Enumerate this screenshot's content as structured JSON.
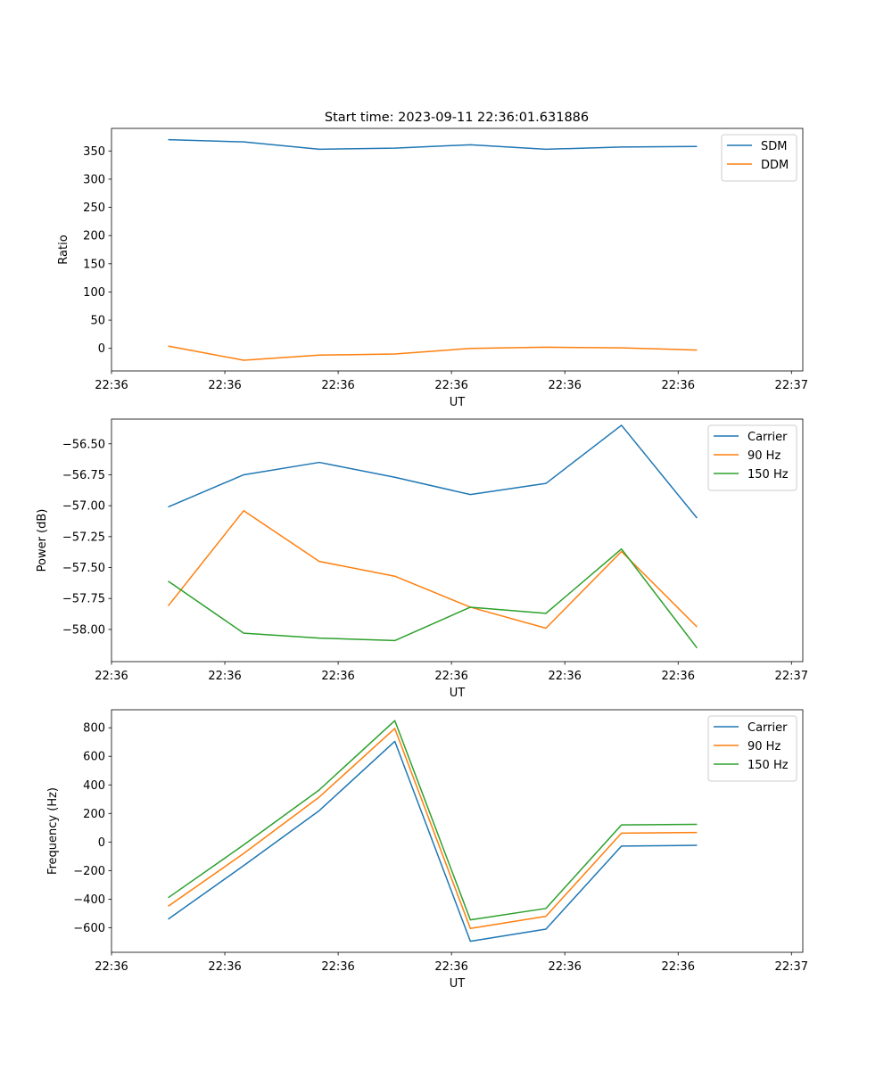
{
  "figure_title": "Start time: 2023-09-11 22:36:01.631886",
  "colors": {
    "c0": "#1f77b4",
    "c1": "#ff7f0e",
    "c2": "#2ca02c"
  },
  "chart_data": [
    {
      "type": "line",
      "title": "Start time: 2023-09-11 22:36:01.631886",
      "xlabel": "UT",
      "ylabel": "Ratio",
      "x": [
        0,
        1,
        2,
        3,
        4,
        5,
        6,
        7
      ],
      "xlim": [
        -0.75,
        8.4
      ],
      "xticks": [
        -0.75,
        0.75,
        2.25,
        3.75,
        5.25,
        6.75,
        8.25
      ],
      "xtick_labels": [
        "22:36",
        "22:36",
        "22:36",
        "22:36",
        "22:36",
        "22:36",
        "22:37"
      ],
      "ylim": [
        -40,
        390
      ],
      "yticks": [
        0,
        50,
        100,
        150,
        200,
        250,
        300,
        350
      ],
      "ytick_labels": [
        "0",
        "50",
        "100",
        "150",
        "200",
        "250",
        "300",
        "350"
      ],
      "legend_position": "top-right",
      "series": [
        {
          "name": "SDM",
          "color": "#1f77b4",
          "values": [
            370,
            366,
            353,
            355,
            361,
            353,
            357,
            358
          ]
        },
        {
          "name": "DDM",
          "color": "#ff7f0e",
          "values": [
            4,
            -21,
            -12,
            -10,
            0,
            2,
            1,
            -3
          ]
        }
      ]
    },
    {
      "type": "line",
      "title": "",
      "xlabel": "UT",
      "ylabel": "Power (dB)",
      "x": [
        0,
        1,
        2,
        3,
        4,
        5,
        6,
        7
      ],
      "xlim": [
        -0.75,
        8.4
      ],
      "xticks": [
        -0.75,
        0.75,
        2.25,
        3.75,
        5.25,
        6.75,
        8.25
      ],
      "xtick_labels": [
        "22:36",
        "22:36",
        "22:36",
        "22:36",
        "22:36",
        "22:36",
        "22:37"
      ],
      "ylim": [
        -58.26,
        -56.3
      ],
      "yticks": [
        -58.0,
        -57.75,
        -57.5,
        -57.25,
        -57.0,
        -56.75,
        -56.5
      ],
      "ytick_labels": [
        "−58.00",
        "−57.75",
        "−57.50",
        "−57.25",
        "−57.00",
        "−56.75",
        "−56.50"
      ],
      "legend_position": "top-right",
      "series": [
        {
          "name": "Carrier",
          "color": "#1f77b4",
          "values": [
            -57.01,
            -56.75,
            -56.65,
            -56.77,
            -56.91,
            -56.82,
            -56.35,
            -57.1
          ]
        },
        {
          "name": "90 Hz",
          "color": "#ff7f0e",
          "values": [
            -57.81,
            -57.04,
            -57.45,
            -57.57,
            -57.82,
            -57.99,
            -57.37,
            -57.98
          ]
        },
        {
          "name": "150 Hz",
          "color": "#2ca02c",
          "values": [
            -57.61,
            -58.03,
            -58.07,
            -58.09,
            -57.82,
            -57.87,
            -57.35,
            -58.15
          ]
        }
      ]
    },
    {
      "type": "line",
      "title": "",
      "xlabel": "UT",
      "ylabel": "Frequency (Hz)",
      "x": [
        0,
        1,
        2,
        3,
        4,
        5,
        6,
        7
      ],
      "xlim": [
        -0.75,
        8.4
      ],
      "xticks": [
        -0.75,
        0.75,
        2.25,
        3.75,
        5.25,
        6.75,
        8.25
      ],
      "xtick_labels": [
        "22:36",
        "22:36",
        "22:36",
        "22:36",
        "22:36",
        "22:36",
        "22:37"
      ],
      "ylim": [
        -772,
        926
      ],
      "yticks": [
        -600,
        -400,
        -200,
        0,
        200,
        400,
        600,
        800
      ],
      "ytick_labels": [
        "−600",
        "−400",
        "−200",
        "0",
        "200",
        "400",
        "600",
        "800"
      ],
      "legend_position": "top-right",
      "series": [
        {
          "name": "Carrier",
          "color": "#1f77b4",
          "values": [
            -540,
            -165,
            220,
            705,
            -695,
            -610,
            -28,
            -23
          ]
        },
        {
          "name": "90 Hz",
          "color": "#ff7f0e",
          "values": [
            -450,
            -80,
            315,
            795,
            -605,
            -520,
            62,
            67
          ]
        },
        {
          "name": "150 Hz",
          "color": "#2ca02c",
          "values": [
            -390,
            -20,
            365,
            850,
            -545,
            -465,
            120,
            124
          ]
        }
      ]
    }
  ]
}
